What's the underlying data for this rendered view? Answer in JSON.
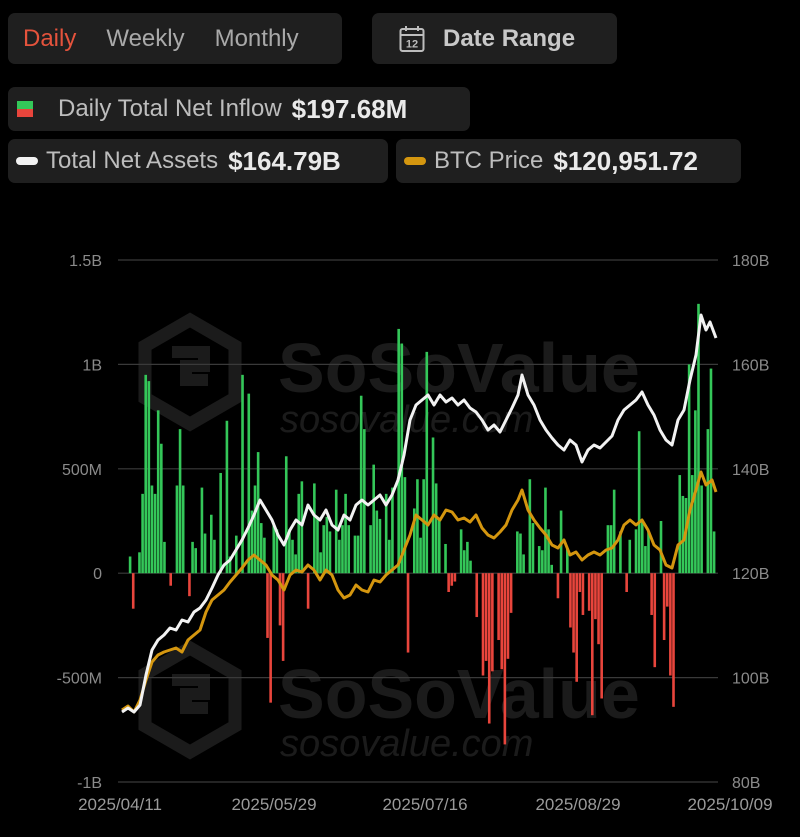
{
  "toolbar": {
    "tabs": [
      {
        "label": "Daily",
        "active": true
      },
      {
        "label": "Weekly",
        "active": false
      },
      {
        "label": "Monthly",
        "active": false
      }
    ],
    "date_range": {
      "label": "Date Range",
      "icon": "calendar-icon",
      "icon_text": "12"
    }
  },
  "legend": {
    "inflow": {
      "label": "Daily Total Net Inflow",
      "value": "$197.68M",
      "up_color": "#34c759",
      "down_color": "#e8453c"
    },
    "assets": {
      "label": "Total Net Assets",
      "value": "$164.79B",
      "color": "#f2f2f2"
    },
    "btc": {
      "label": "BTC Price",
      "value": "$120,951.72",
      "color": "#d4960f"
    }
  },
  "watermark": {
    "brand": "SoSoValue",
    "url": "sosovalue.com"
  },
  "chart_data": {
    "type": "bar+line",
    "title": "",
    "x_tick_labels": [
      "2025/04/11",
      "2025/05/29",
      "2025/07/16",
      "2025/08/29",
      "2025/10/09"
    ],
    "y_left": {
      "label": "Daily Total Net Inflow",
      "ticks": [
        "1.5B",
        "1B",
        "500M",
        "0",
        "-500M",
        "-1B"
      ],
      "range": [
        -1000,
        1500
      ],
      "unit": "M"
    },
    "y_right": {
      "label": "Total Net Assets",
      "ticks": [
        "180B",
        "160B",
        "140B",
        "120B",
        "100B",
        "80B"
      ],
      "range": [
        80,
        180
      ],
      "unit": "B"
    },
    "grid": true,
    "series": [
      {
        "name": "Daily Total Net Inflow",
        "type": "bar",
        "unit": "M USD",
        "values": [
          80,
          -170,
          0,
          100,
          380,
          950,
          920,
          420,
          380,
          780,
          620,
          150,
          0,
          -60,
          0,
          420,
          690,
          420,
          0,
          -110,
          150,
          120,
          0,
          410,
          190,
          0,
          280,
          160,
          0,
          480,
          0,
          730,
          80,
          0,
          180,
          0,
          950,
          0,
          860,
          300,
          420,
          580,
          240,
          170,
          -310,
          -620,
          230,
          210,
          -250,
          -420,
          560,
          210,
          160,
          90,
          380,
          440,
          0,
          -170,
          0,
          430,
          270,
          100,
          230,
          270,
          200,
          0,
          400,
          160,
          230,
          380,
          230,
          0,
          180,
          180,
          850,
          690,
          0,
          230,
          520,
          300,
          260,
          0,
          380,
          160,
          410,
          0,
          1170,
          1100,
          460,
          -380,
          0,
          310,
          450,
          170,
          450,
          1060,
          0,
          650,
          430,
          260,
          0,
          140,
          -90,
          -60,
          -40,
          0,
          210,
          110,
          150,
          60,
          0,
          -210,
          0,
          -490,
          -420,
          -720,
          -470,
          0,
          -320,
          -460,
          -820,
          -410,
          -190,
          0,
          200,
          190,
          90,
          0,
          450,
          240,
          0,
          130,
          110,
          410,
          210,
          40,
          0,
          -120,
          300,
          0,
          120,
          -260,
          -380,
          -520,
          -90,
          -200,
          0,
          -180,
          -680,
          -220,
          -340,
          -600,
          0,
          230,
          230,
          400,
          0,
          200,
          0,
          -90,
          160,
          0,
          210,
          680,
          250,
          130,
          200,
          -200,
          -450,
          0,
          250,
          -320,
          -160,
          -490,
          -640,
          0,
          470,
          370,
          360,
          1000,
          470,
          780,
          1290,
          420,
          0,
          690,
          980,
          200
        ]
      },
      {
        "name": "Total Net Assets",
        "type": "line",
        "unit": "B USD",
        "color": "#f2f2f2"
      },
      {
        "name": "BTC Price",
        "type": "line",
        "unit": "USD",
        "color": "#d4960f",
        "last_value": 120951.72
      }
    ],
    "latest": {
      "net_inflow": "$197.68M",
      "total_net_assets": "$164.79B",
      "btc_price": "$120,951.72"
    }
  }
}
